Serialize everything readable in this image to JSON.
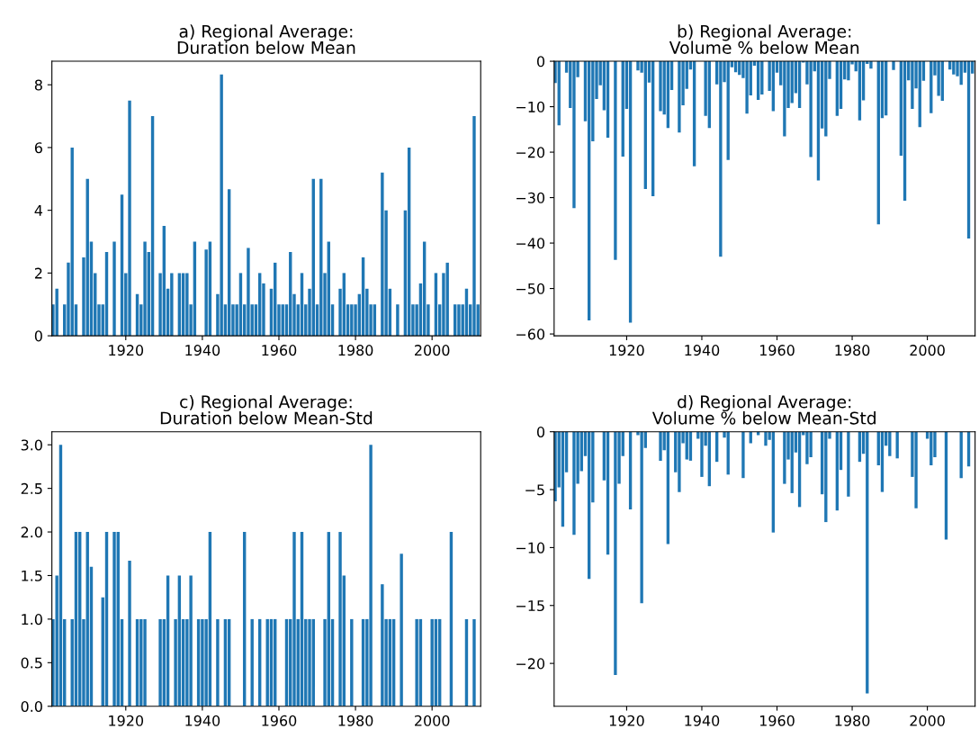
{
  "chart_data": [
    {
      "type": "bar",
      "title": "a) Regional Average:\nDuration below Mean",
      "color": "#1f77b4",
      "grid": false,
      "legend": false,
      "x": [
        1901,
        1902,
        1903,
        1904,
        1905,
        1906,
        1907,
        1908,
        1909,
        1910,
        1911,
        1912,
        1913,
        1914,
        1915,
        1916,
        1917,
        1918,
        1919,
        1920,
        1921,
        1922,
        1923,
        1924,
        1925,
        1926,
        1927,
        1928,
        1929,
        1930,
        1931,
        1932,
        1933,
        1934,
        1935,
        1936,
        1937,
        1938,
        1939,
        1940,
        1941,
        1942,
        1943,
        1944,
        1945,
        1946,
        1947,
        1948,
        1949,
        1950,
        1951,
        1952,
        1953,
        1954,
        1955,
        1956,
        1957,
        1958,
        1959,
        1960,
        1961,
        1962,
        1963,
        1964,
        1965,
        1966,
        1967,
        1968,
        1969,
        1970,
        1971,
        1972,
        1973,
        1974,
        1975,
        1976,
        1977,
        1978,
        1979,
        1980,
        1981,
        1982,
        1983,
        1984,
        1985,
        1986,
        1987,
        1988,
        1989,
        1990,
        1991,
        1992,
        1993,
        1994,
        1995,
        1996,
        1997,
        1998,
        1999,
        2000,
        2001,
        2002,
        2003,
        2004,
        2005,
        2006,
        2007,
        2008,
        2009,
        2010,
        2011,
        2012
      ],
      "values": [
        1,
        1.5,
        0,
        1,
        2.33,
        6,
        1,
        0,
        2.5,
        5,
        3,
        2,
        1,
        1,
        2.67,
        0,
        3,
        0,
        4.5,
        2,
        7.5,
        0,
        1.33,
        1,
        3,
        2.67,
        7,
        0,
        2,
        3.5,
        1.5,
        2,
        0,
        2,
        2,
        2,
        1,
        3,
        0,
        0,
        2.75,
        3,
        0,
        1.33,
        8.33,
        1,
        4.67,
        1,
        1,
        2,
        1,
        2.8,
        1,
        1,
        2,
        1.67,
        0,
        1.5,
        2.33,
        1,
        1,
        1,
        2.67,
        1.33,
        1,
        2,
        1,
        1.5,
        5,
        1,
        5,
        2,
        3,
        1,
        0,
        1.5,
        2,
        1,
        1,
        1,
        1.33,
        2.5,
        1.5,
        1,
        1,
        0,
        5.2,
        4,
        1.5,
        0,
        1,
        0,
        4,
        6,
        1,
        1,
        1.67,
        3,
        1,
        0,
        2,
        1,
        2,
        2.33,
        0,
        1,
        1,
        1,
        1.5,
        1,
        7,
        1
      ],
      "xlim": [
        1900.7,
        2012.7
      ],
      "xticks": [
        1920,
        1940,
        1960,
        1980,
        2000
      ],
      "ylim": [
        0,
        8.75
      ],
      "yticks": [
        0,
        2,
        4,
        6,
        8
      ]
    },
    {
      "type": "bar",
      "title": "b) Regional Average:\nVolume % below Mean",
      "color": "#1f77b4",
      "grid": false,
      "legend": false,
      "x": [
        1901,
        1902,
        1903,
        1904,
        1905,
        1906,
        1907,
        1908,
        1909,
        1910,
        1911,
        1912,
        1913,
        1914,
        1915,
        1916,
        1917,
        1918,
        1919,
        1920,
        1921,
        1922,
        1923,
        1924,
        1925,
        1926,
        1927,
        1928,
        1929,
        1930,
        1931,
        1932,
        1933,
        1934,
        1935,
        1936,
        1937,
        1938,
        1939,
        1940,
        1941,
        1942,
        1943,
        1944,
        1945,
        1946,
        1947,
        1948,
        1949,
        1950,
        1951,
        1952,
        1953,
        1954,
        1955,
        1956,
        1957,
        1958,
        1959,
        1960,
        1961,
        1962,
        1963,
        1964,
        1965,
        1966,
        1967,
        1968,
        1969,
        1970,
        1971,
        1972,
        1973,
        1974,
        1975,
        1976,
        1977,
        1978,
        1979,
        1980,
        1981,
        1982,
        1983,
        1984,
        1985,
        1986,
        1987,
        1988,
        1989,
        1990,
        1991,
        1992,
        1993,
        1994,
        1995,
        1996,
        1997,
        1998,
        1999,
        2000,
        2001,
        2002,
        2003,
        2004,
        2005,
        2006,
        2007,
        2008,
        2009,
        2010,
        2011,
        2012
      ],
      "values": [
        -4.8,
        -14.1,
        0,
        -2.5,
        -10.3,
        -32.3,
        -3.5,
        0,
        -13.2,
        -57,
        -17.6,
        -8.3,
        -5.3,
        -10.8,
        -16.8,
        0,
        -43.7,
        0,
        -21,
        -10.5,
        -57.5,
        0,
        -2,
        -2.5,
        -28.1,
        -4.7,
        -29.7,
        0,
        -11,
        -11.7,
        -14.7,
        -6.3,
        0,
        -15.7,
        -9.7,
        -6.1,
        -1.8,
        -23.1,
        0,
        0,
        -12,
        -14.7,
        0,
        -5.1,
        -43,
        -4.6,
        -21.7,
        -1.3,
        -2.4,
        -3,
        -3.7,
        -11.5,
        -7.5,
        -1,
        -8.5,
        -7.3,
        0,
        -6.5,
        -11,
        -2.5,
        -5.3,
        -16.5,
        -10.3,
        -9.2,
        -7,
        -10.3,
        -0.3,
        -5.1,
        -21.1,
        -2.2,
        -26.2,
        -14.8,
        -16.5,
        -3.9,
        0,
        -12,
        -10.5,
        -4,
        -4.2,
        -0.7,
        -2.2,
        -13,
        -8.6,
        -0.6,
        -1.6,
        0,
        -35.9,
        -12.5,
        -11.9,
        0,
        -1.9,
        0,
        -20.8,
        -30.7,
        -4.2,
        -10.5,
        -6,
        -14.5,
        -4.3,
        0,
        -11.4,
        -3.1,
        -7.6,
        -8.7,
        0,
        -1.8,
        -2.9,
        -3.3,
        -5.2,
        -2.5,
        -39,
        -2.7
      ],
      "xlim": [
        1900.7,
        2012.7
      ],
      "xticks": [
        1920,
        1940,
        1960,
        1980,
        2000
      ],
      "ylim": [
        -60.4,
        0
      ],
      "yticks": [
        {
          "value": -60,
          "label": "−60"
        },
        {
          "value": -50,
          "label": "−50"
        },
        {
          "value": -40,
          "label": "−40"
        },
        {
          "value": -30,
          "label": "−30"
        },
        {
          "value": -20,
          "label": "−20"
        },
        {
          "value": -10,
          "label": "−10"
        },
        0
      ]
    },
    {
      "type": "bar",
      "title": "c) Regional Average:\nDuration below Mean-Std",
      "color": "#1f77b4",
      "grid": false,
      "legend": false,
      "x": [
        1901,
        1902,
        1903,
        1904,
        1905,
        1906,
        1907,
        1908,
        1909,
        1910,
        1911,
        1912,
        1913,
        1914,
        1915,
        1916,
        1917,
        1918,
        1919,
        1920,
        1921,
        1922,
        1923,
        1924,
        1925,
        1926,
        1927,
        1928,
        1929,
        1930,
        1931,
        1932,
        1933,
        1934,
        1935,
        1936,
        1937,
        1938,
        1939,
        1940,
        1941,
        1942,
        1943,
        1944,
        1945,
        1946,
        1947,
        1948,
        1949,
        1950,
        1951,
        1952,
        1953,
        1954,
        1955,
        1956,
        1957,
        1958,
        1959,
        1960,
        1961,
        1962,
        1963,
        1964,
        1965,
        1966,
        1967,
        1968,
        1969,
        1970,
        1971,
        1972,
        1973,
        1974,
        1975,
        1976,
        1977,
        1978,
        1979,
        1980,
        1981,
        1982,
        1983,
        1984,
        1985,
        1986,
        1987,
        1988,
        1989,
        1990,
        1991,
        1992,
        1993,
        1994,
        1995,
        1996,
        1997,
        1998,
        1999,
        2000,
        2001,
        2002,
        2003,
        2004,
        2005,
        2006,
        2007,
        2008,
        2009,
        2010,
        2011,
        2012
      ],
      "values": [
        1,
        1.5,
        3,
        1,
        0,
        1,
        2,
        2,
        1,
        2,
        1.6,
        0,
        0,
        1.25,
        2,
        0,
        2,
        2,
        1,
        0,
        1.67,
        0,
        1,
        1,
        1,
        0,
        0,
        0,
        1,
        1,
        1.5,
        0,
        1,
        1.5,
        1,
        1,
        1.5,
        0,
        1,
        1,
        1,
        2,
        0,
        1,
        0,
        1,
        1,
        0,
        0,
        0,
        2,
        0,
        1,
        0,
        1,
        0,
        1,
        1,
        1,
        0,
        0,
        1,
        1,
        2,
        1,
        2,
        1,
        1,
        1,
        0,
        0,
        1,
        2,
        1,
        0,
        2,
        1.5,
        0,
        1,
        0,
        0,
        1,
        1,
        3,
        0,
        0,
        1.4,
        1,
        1,
        1,
        0,
        1.75,
        0,
        0,
        0,
        1,
        1,
        0,
        0,
        1,
        1,
        1,
        0,
        0,
        2,
        0,
        0,
        0,
        1,
        0,
        1,
        0
      ],
      "xlim": [
        1900.7,
        2012.7
      ],
      "xticks": [
        1920,
        1940,
        1960,
        1980,
        2000
      ],
      "ylim": [
        0,
        3.15
      ],
      "yticks": [
        {
          "value": 0,
          "label": "0.0"
        },
        {
          "value": 0.5,
          "label": "0.5"
        },
        {
          "value": 1,
          "label": "1.0"
        },
        {
          "value": 1.5,
          "label": "1.5"
        },
        {
          "value": 2,
          "label": "2.0"
        },
        {
          "value": 2.5,
          "label": "2.5"
        },
        {
          "value": 3,
          "label": "3.0"
        }
      ]
    },
    {
      "type": "bar",
      "title": "d) Regional Average:\nVolume % below Mean-Std",
      "color": "#1f77b4",
      "grid": false,
      "legend": false,
      "x": [
        1901,
        1902,
        1903,
        1904,
        1905,
        1906,
        1907,
        1908,
        1909,
        1910,
        1911,
        1912,
        1913,
        1914,
        1915,
        1916,
        1917,
        1918,
        1919,
        1920,
        1921,
        1922,
        1923,
        1924,
        1925,
        1926,
        1927,
        1928,
        1929,
        1930,
        1931,
        1932,
        1933,
        1934,
        1935,
        1936,
        1937,
        1938,
        1939,
        1940,
        1941,
        1942,
        1943,
        1944,
        1945,
        1946,
        1947,
        1948,
        1949,
        1950,
        1951,
        1952,
        1953,
        1954,
        1955,
        1956,
        1957,
        1958,
        1959,
        1960,
        1961,
        1962,
        1963,
        1964,
        1965,
        1966,
        1967,
        1968,
        1969,
        1970,
        1971,
        1972,
        1973,
        1974,
        1975,
        1976,
        1977,
        1978,
        1979,
        1980,
        1981,
        1982,
        1983,
        1984,
        1985,
        1986,
        1987,
        1988,
        1989,
        1990,
        1991,
        1992,
        1993,
        1994,
        1995,
        1996,
        1997,
        1998,
        1999,
        2000,
        2001,
        2002,
        2003,
        2004,
        2005,
        2006,
        2007,
        2008,
        2009,
        2010,
        2011,
        2012
      ],
      "values": [
        -6,
        -4.8,
        -8.2,
        -3.5,
        0,
        -8.9,
        -4.5,
        -3.4,
        -2.1,
        -12.7,
        -6.1,
        0,
        0,
        -4.2,
        -10.6,
        0,
        -21,
        -4.5,
        -2.1,
        0,
        -6.7,
        0,
        -0.3,
        -14.8,
        -1.4,
        0,
        0,
        0,
        -2.5,
        -1.6,
        -9.7,
        0,
        -3.5,
        -5.2,
        -1,
        -2.4,
        -2.5,
        0,
        -0.6,
        -3.9,
        -1.2,
        -4.7,
        0,
        -2.6,
        0,
        -0.5,
        -3.7,
        0,
        0,
        0,
        -4,
        0,
        -1,
        0,
        -0.3,
        0,
        -1.2,
        -0.7,
        -8.7,
        0,
        0,
        -4.5,
        -2.4,
        -5.3,
        -1.8,
        -6.5,
        -0.3,
        -2.8,
        -2.2,
        0,
        0,
        -5.4,
        -7.8,
        -0.6,
        0,
        -6.8,
        -3.3,
        0,
        -5.6,
        0,
        0,
        -2.6,
        -1.9,
        -22.6,
        0,
        0,
        -2.9,
        -5.2,
        -1.2,
        -2.1,
        0,
        -2.3,
        0,
        0,
        0,
        -3.9,
        -6.6,
        0,
        0,
        -0.6,
        -2.9,
        -2.2,
        0,
        0,
        -9.3,
        0,
        0,
        0,
        -4,
        0,
        -3,
        0
      ],
      "xlim": [
        1900.7,
        2012.7
      ],
      "xticks": [
        1920,
        1940,
        1960,
        1980,
        2000
      ],
      "ylim": [
        -23.7,
        0
      ],
      "yticks": [
        {
          "value": -20,
          "label": "−20"
        },
        {
          "value": -15,
          "label": "−15"
        },
        {
          "value": -10,
          "label": "−10"
        },
        {
          "value": -5,
          "label": "−5"
        },
        0
      ]
    }
  ]
}
